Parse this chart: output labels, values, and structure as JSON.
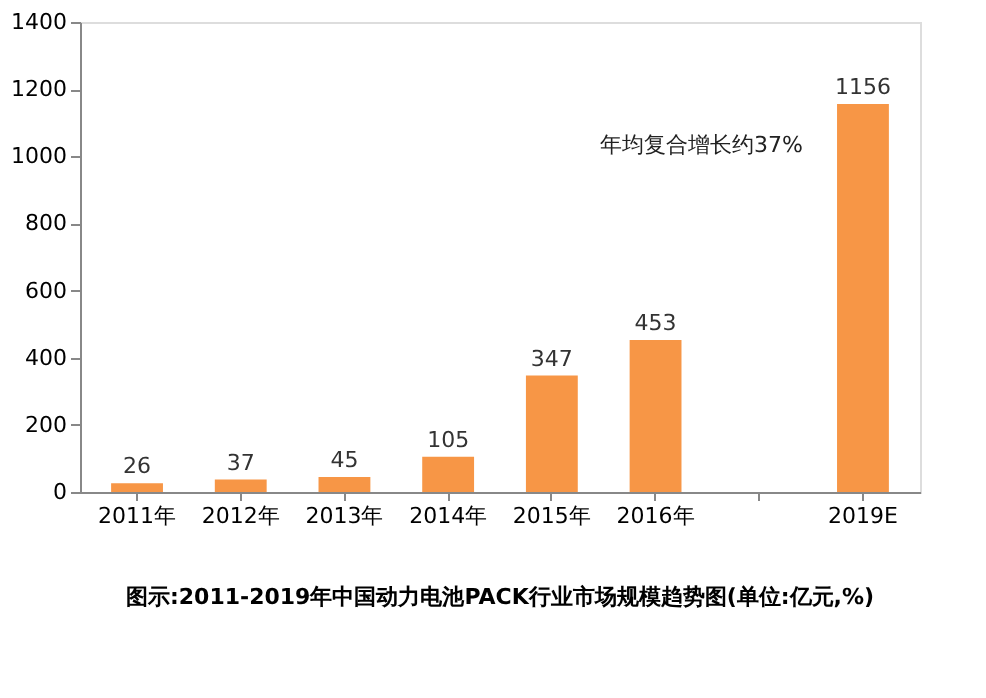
{
  "chart_data": {
    "type": "bar",
    "title": "图示:2011-2019年中国动力电池PACK行业市场规模趋势图(单位:亿元,%)",
    "categories": [
      "2011年",
      "2012年",
      "2013年",
      "2014年",
      "2015年",
      "2016年",
      null,
      "2019E"
    ],
    "values": [
      26,
      37,
      45,
      105,
      347,
      453,
      null,
      1156
    ],
    "color": "#f79646",
    "ylim": [
      0,
      1400
    ],
    "yticks": [
      0,
      200,
      400,
      600,
      800,
      1000,
      1200,
      1400
    ],
    "grid": false,
    "data_labels": true,
    "annotations": [
      "年均复合增长约37%"
    ]
  }
}
